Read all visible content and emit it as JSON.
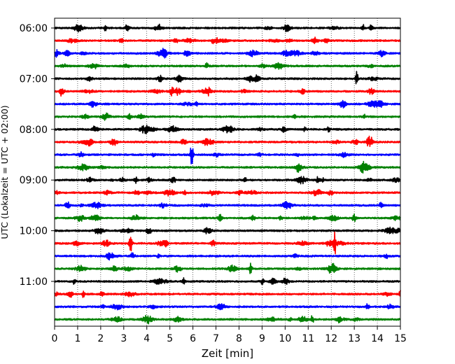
{
  "chart_data": {
    "type": "line",
    "title": "",
    "xlabel": "Zeit  [min]",
    "ylabel": "UTC (Lokalzeit = UTC + 02:00)",
    "xlim": [
      0,
      15
    ],
    "x_ticks": [
      "0",
      "1",
      "2",
      "3",
      "4",
      "5",
      "6",
      "7",
      "8",
      "9",
      "10",
      "11",
      "12",
      "13",
      "14",
      "15"
    ],
    "y_ticks": [
      "06:00",
      "07:00",
      "08:00",
      "09:00",
      "10:00",
      "11:00"
    ],
    "grid": "vertical dotted",
    "trace_interval_min": 15,
    "trace_start": "06:00",
    "trace_count": 24,
    "trace_colors": [
      "#000000",
      "#ff0000",
      "#0000ff",
      "#008000"
    ],
    "notable_events": [
      {
        "trace_start": "07:00",
        "x_min": 13.1,
        "relative_amplitude": 0.5
      },
      {
        "trace_start": "08:30",
        "x_min": 5.95,
        "relative_amplitude": 1.0
      },
      {
        "trace_start": "09:00",
        "x_min": 8.25,
        "relative_amplitude": 0.25
      },
      {
        "trace_start": "10:15",
        "x_min": 3.3,
        "relative_amplitude": 1.0
      },
      {
        "trace_start": "10:15",
        "x_min": 12.15,
        "relative_amplitude": 1.0
      },
      {
        "trace_start": "10:45",
        "x_min": 8.5,
        "relative_amplitude": 0.4
      },
      {
        "trace_start": "11:15",
        "x_min": 15.0,
        "relative_amplitude": 0.3
      }
    ]
  }
}
